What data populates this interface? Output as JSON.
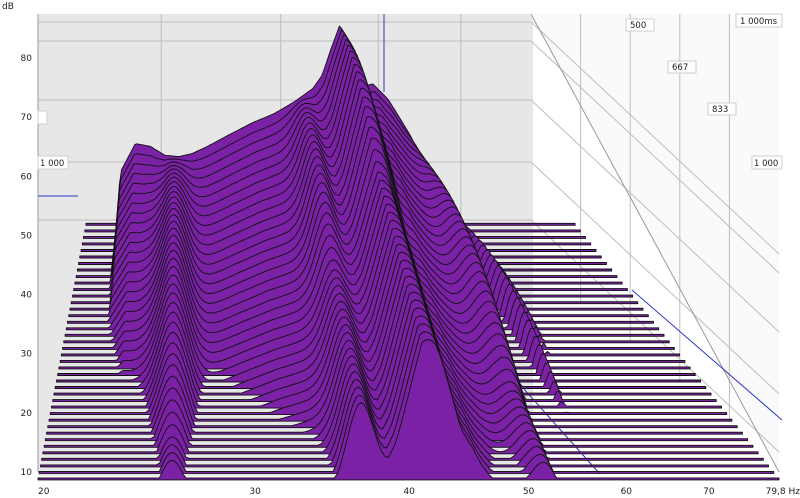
{
  "chart_data": {
    "type": "area",
    "title": "",
    "ylabel": "dB",
    "xunit": "Hz",
    "x_scale": "log",
    "xlim": [
      20,
      79.8
    ],
    "ylim": [
      10,
      85
    ],
    "zlim": [
      0,
      1000
    ],
    "x_ticks": [
      "20",
      "30",
      "40",
      "50",
      "60",
      "70",
      "79,8 Hz"
    ],
    "y_ticks": [
      "10",
      "20",
      "30",
      "40",
      "50",
      "60",
      "70",
      "80"
    ],
    "z_ticks": [
      "500",
      "667",
      "833",
      "1 000"
    ],
    "z_corner_label": "1 000ms",
    "side_labels": [
      "1 000",
      "1 000"
    ],
    "slice_count": 40,
    "first_slice": {
      "x": [
        20,
        21.5,
        22,
        23,
        24,
        25,
        26,
        27,
        28,
        30,
        32,
        34,
        36,
        38,
        39,
        40,
        41,
        42,
        43,
        44,
        45,
        47,
        50,
        53,
        56,
        60,
        66,
        72,
        79.8
      ],
      "db": [
        10,
        10,
        57.5,
        62.5,
        62,
        60.5,
        60.3,
        60.8,
        61.8,
        64,
        66,
        67.5,
        69.5,
        71.8,
        74,
        78.5,
        82.5,
        80,
        75.5,
        72.2,
        72.6,
        70,
        64,
        57,
        51.5,
        46,
        38,
        33,
        31
      ]
    },
    "colors": {
      "fill": "#7a21a5",
      "stroke": "#111111",
      "wall": "#e7e7e7",
      "grid": "#bdbdbd",
      "accent": "#2a35c9"
    }
  }
}
